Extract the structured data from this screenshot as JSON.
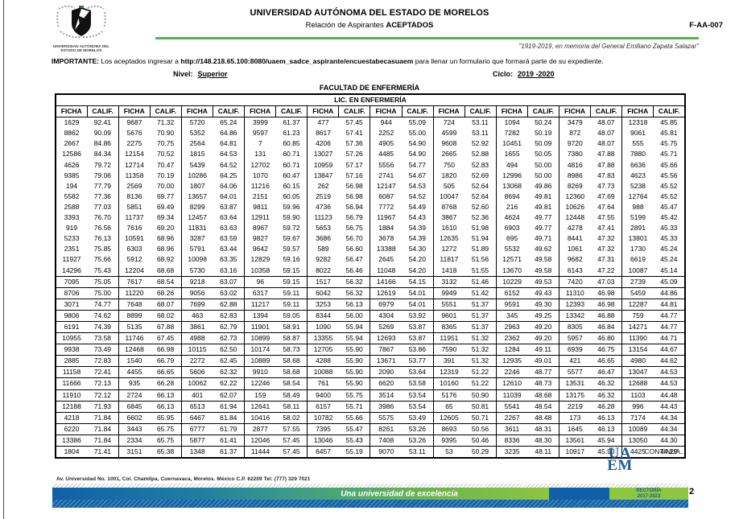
{
  "header": {
    "university": "UNIVERSIDAD AUTÓNOMA DEL ESTADO DE MORELOS",
    "subtitle_prefix": "Relación de Aspirantes ",
    "subtitle_bold": "ACEPTADOS",
    "form_code": "F-AA-007",
    "motto": "\"1919-2019, en memoria del General Emiliano Zapata Salazar\"",
    "crest_caption_line1": "UNIVERSIDAD AUTÓNOMA DEL",
    "crest_caption_line2": "ESTADO DE MORELOS",
    "important_label": "IMPORTANTE:",
    "important_pre": " Los aceptados ingresar a ",
    "important_url": "http://148.218.65.100:8080/uaem_sadce_aspirante/encuestabecasuaem",
    "important_post": " para llenar un formulario que formará parte de su expediente.",
    "nivel_label": "Nivel:",
    "nivel_value": "Superior",
    "ciclo_label": "Ciclo:",
    "ciclo_value": "2019 -2020",
    "faculty": "FACULTAD DE ENFERMERÍA"
  },
  "table": {
    "program": "LIC. EN ENFERMERÍA",
    "col_headers": [
      "FICHA",
      "CALIF."
    ],
    "pairs_per_row": 10,
    "bordered_rows_from": 15,
    "rows": [
      [
        "1629",
        "92.41",
        "9687",
        "71.32",
        "5720",
        "65.24",
        "3999",
        "61.37",
        "477",
        "57.45",
        "944",
        "55.09",
        "724",
        "53.11",
        "1094",
        "50.24",
        "3479",
        "48.07",
        "12318",
        "45.85"
      ],
      [
        "8862",
        "90.09",
        "5676",
        "70.90",
        "5352",
        "64.86",
        "9597",
        "61.23",
        "8617",
        "57.41",
        "2252",
        "55.00",
        "4599",
        "53.11",
        "7282",
        "50.19",
        "872",
        "48.07",
        "9061",
        "45.81"
      ],
      [
        "2667",
        "84.86",
        "2275",
        "70.75",
        "2564",
        "64.81",
        "7",
        "60.85",
        "4206",
        "57.36",
        "4905",
        "54.90",
        "9608",
        "52.92",
        "10451",
        "50.09",
        "9720",
        "48.07",
        "555",
        "45.75"
      ],
      [
        "12586",
        "84.34",
        "12154",
        "70.52",
        "1815",
        "64.53",
        "131",
        "60.71",
        "13027",
        "57.26",
        "4485",
        "54.90",
        "2665",
        "52.88",
        "1655",
        "50.05",
        "7380",
        "47.88",
        "7880",
        "45.71"
      ],
      [
        "4626",
        "79.72",
        "12714",
        "70.47",
        "5439",
        "64.52",
        "12702",
        "60.71",
        "10959",
        "57.17",
        "5556",
        "54.77",
        "750",
        "52.83",
        "494",
        "50.00",
        "4816",
        "47.88",
        "6636",
        "45.66"
      ],
      [
        "9385",
        "79.06",
        "11358",
        "70.19",
        "10286",
        "64.25",
        "1070",
        "60.47",
        "13847",
        "57.16",
        "2741",
        "54.67",
        "1820",
        "52.69",
        "12996",
        "50.00",
        "8986",
        "47.83",
        "4623",
        "45.56"
      ],
      [
        "194",
        "77.79",
        "2569",
        "70.00",
        "1807",
        "64.06",
        "11216",
        "60.15",
        "262",
        "56.98",
        "12147",
        "54.53",
        "505",
        "52.64",
        "13068",
        "49.86",
        "8269",
        "47.73",
        "5238",
        "45.52"
      ],
      [
        "5582",
        "77.36",
        "8136",
        "69.77",
        "13657",
        "64.01",
        "2151",
        "60.05",
        "2519",
        "56.98",
        "6087",
        "54.52",
        "10047",
        "52.64",
        "8694",
        "49.81",
        "12360",
        "47.69",
        "12764",
        "45.52"
      ],
      [
        "2588",
        "77.03",
        "5851",
        "69.49",
        "8299",
        "63.87",
        "9811",
        "59.96",
        "4736",
        "56.94",
        "7772",
        "54.49",
        "8768",
        "52.60",
        "216",
        "49.81",
        "10626",
        "47.64",
        "988",
        "45.47"
      ],
      [
        "3393",
        "76.70",
        "11737",
        "69.34",
        "12457",
        "63.64",
        "12911",
        "59.90",
        "11123",
        "56.79",
        "11967",
        "54.43",
        "3867",
        "52.36",
        "4624",
        "49.77",
        "12448",
        "47.55",
        "5199",
        "45.42"
      ],
      [
        "919",
        "76.56",
        "7616",
        "69.20",
        "11831",
        "63.63",
        "8967",
        "59.72",
        "5653",
        "56.75",
        "1884",
        "54.39",
        "1610",
        "51.98",
        "6903",
        "49.77",
        "4278",
        "47.41",
        "2891",
        "45.33"
      ],
      [
        "5233",
        "76.13",
        "10591",
        "68.96",
        "3287",
        "63.59",
        "9827",
        "59.67",
        "3686",
        "56.70",
        "3678",
        "54.39",
        "12635",
        "51.94",
        "695",
        "49.71",
        "8441",
        "47.32",
        "13801",
        "45.33"
      ],
      [
        "2351",
        "75.85",
        "6303",
        "68.96",
        "5791",
        "63.44",
        "9642",
        "59.57",
        "589",
        "56.60",
        "13388",
        "54.30",
        "1272",
        "51.89",
        "5532",
        "49.62",
        "1061",
        "47.32",
        "1730",
        "45.24"
      ],
      [
        "11927",
        "75.66",
        "5912",
        "68.92",
        "10098",
        "63.35",
        "12829",
        "59.16",
        "9282",
        "56.47",
        "2645",
        "54.20",
        "11817",
        "51.56",
        "12571",
        "49.58",
        "9682",
        "47.31",
        "6619",
        "45.24"
      ],
      [
        "14296",
        "75.43",
        "12204",
        "68.68",
        "5730",
        "63.16",
        "10358",
        "59.15",
        "8022",
        "56.46",
        "11048",
        "54.20",
        "1418",
        "51.55",
        "13670",
        "49.58",
        "6143",
        "47.22",
        "10087",
        "45.14"
      ],
      [
        "7095",
        "75.05",
        "7617",
        "68.54",
        "9218",
        "63.07",
        "96",
        "59.15",
        "1517",
        "56.32",
        "14166",
        "54.15",
        "3132",
        "51.46",
        "10229",
        "49.53",
        "7420",
        "47.03",
        "2739",
        "45.09"
      ],
      [
        "8706",
        "75.00",
        "11220",
        "68.26",
        "9056",
        "63.02",
        "6317",
        "59.11",
        "6042",
        "56.32",
        "12619",
        "54.01",
        "9949",
        "51.42",
        "6152",
        "49.43",
        "11310",
        "46.98",
        "5459",
        "44.86"
      ],
      [
        "3071",
        "74.77",
        "7648",
        "68.07",
        "7699",
        "62.88",
        "11217",
        "59.11",
        "3253",
        "56.13",
        "6979",
        "54.01",
        "5551",
        "51.37",
        "9591",
        "49.30",
        "12393",
        "46.98",
        "12287",
        "44.81"
      ],
      [
        "9806",
        "74.62",
        "8899",
        "68.02",
        "463",
        "62.83",
        "1394",
        "59.05",
        "8344",
        "56.00",
        "4304",
        "53.92",
        "9601",
        "51.37",
        "345",
        "49.25",
        "13342",
        "46.88",
        "759",
        "44.77"
      ],
      [
        "6191",
        "74.39",
        "5135",
        "67.88",
        "3861",
        "62.79",
        "11901",
        "58.91",
        "1090",
        "55.94",
        "5269",
        "53.87",
        "8365",
        "51.37",
        "2963",
        "49.20",
        "8305",
        "46.84",
        "14271",
        "44.77"
      ],
      [
        "10955",
        "73.58",
        "11746",
        "67.45",
        "4988",
        "62.73",
        "10899",
        "58.87",
        "13355",
        "55.94",
        "12693",
        "53.87",
        "11951",
        "51.32",
        "2362",
        "49.20",
        "5957",
        "46.80",
        "11390",
        "44.71"
      ],
      [
        "9938",
        "73.49",
        "12468",
        "66.98",
        "10115",
        "62.50",
        "10174",
        "58.73",
        "12705",
        "55.90",
        "7867",
        "53.86",
        "7590",
        "51.32",
        "1284",
        "49.11",
        "6939",
        "46.75",
        "13154",
        "44.67"
      ],
      [
        "2885",
        "72.83",
        "1540",
        "66.79",
        "2272",
        "62.45",
        "10889",
        "58.68",
        "4288",
        "55.90",
        "13671",
        "53.77",
        "391",
        "51.32",
        "12935",
        "49.01",
        "421",
        "46.65",
        "4980",
        "44.62"
      ],
      [
        "11158",
        "72.41",
        "4455",
        "66.65",
        "5606",
        "62.32",
        "9910",
        "58.68",
        "10088",
        "55.90",
        "2090",
        "53.64",
        "12319",
        "51.22",
        "2246",
        "48.77",
        "5577",
        "46.47",
        "13047",
        "44.53"
      ],
      [
        "11666",
        "72.13",
        "935",
        "66.28",
        "10062",
        "62.22",
        "12246",
        "58.54",
        "761",
        "55.90",
        "6620",
        "53.58",
        "10160",
        "51.22",
        "12610",
        "48.73",
        "13531",
        "46.32",
        "12688",
        "44.53"
      ],
      [
        "11910",
        "72.12",
        "2724",
        "66.13",
        "401",
        "62.07",
        "159",
        "58.49",
        "9400",
        "55.75",
        "3514",
        "53.54",
        "5176",
        "50.90",
        "11039",
        "48.68",
        "13175",
        "46.32",
        "1103",
        "44.48"
      ],
      [
        "12188",
        "71.93",
        "6845",
        "66.13",
        "6513",
        "61.94",
        "12641",
        "58.11",
        "6157",
        "55.71",
        "3986",
        "53.54",
        "65",
        "50.81",
        "5541",
        "48.54",
        "2219",
        "46.28",
        "996",
        "44.43"
      ],
      [
        "4218",
        "71.84",
        "6602",
        "65.95",
        "6467",
        "61.84",
        "10416",
        "58.02",
        "10782",
        "55.66",
        "5575",
        "53.49",
        "12605",
        "50.71",
        "2267",
        "48.48",
        "173",
        "46.13",
        "7174",
        "44.34"
      ],
      [
        "6220",
        "71.84",
        "3443",
        "65.75",
        "6777",
        "61.79",
        "2877",
        "57.55",
        "7395",
        "55.47",
        "8261",
        "53.26",
        "8693",
        "50.56",
        "3611",
        "48.31",
        "1645",
        "46.13",
        "10089",
        "44.34"
      ],
      [
        "13386",
        "71.84",
        "2334",
        "65.75",
        "5877",
        "61.41",
        "12046",
        "57.45",
        "13046",
        "55.43",
        "7408",
        "53.26",
        "9395",
        "50.46",
        "8336",
        "48.30",
        "13561",
        "45.94",
        "13050",
        "44.30"
      ],
      [
        "1804",
        "71.41",
        "3151",
        "65.38",
        "1348",
        "61.37",
        "11444",
        "57.45",
        "6457",
        "55.19",
        "9070",
        "53.11",
        "53",
        "50.29",
        "3235",
        "48.11",
        "10917",
        "45.90",
        "4425",
        "44.29"
      ]
    ],
    "continua": "CONTINUA..."
  },
  "footer": {
    "address": "Av. Universidad No. 1001, Col. Chamilpa, Cuernavaca, Morelos. México C.P. 62209 Tel: (777) 329 7021",
    "slogan": "Una universidad de excelencia",
    "rectoria_line1": "RECTORÍA",
    "rectoria_line2": "2017-2023",
    "logo_top": "UA",
    "logo_bottom": "EM",
    "page_number": "2"
  },
  "colors": {
    "accent_green": "#4db848",
    "banner_blue": "#1060a8",
    "banner_light_green": "#8dc63f",
    "logo_blue": "#1b5a9e"
  }
}
